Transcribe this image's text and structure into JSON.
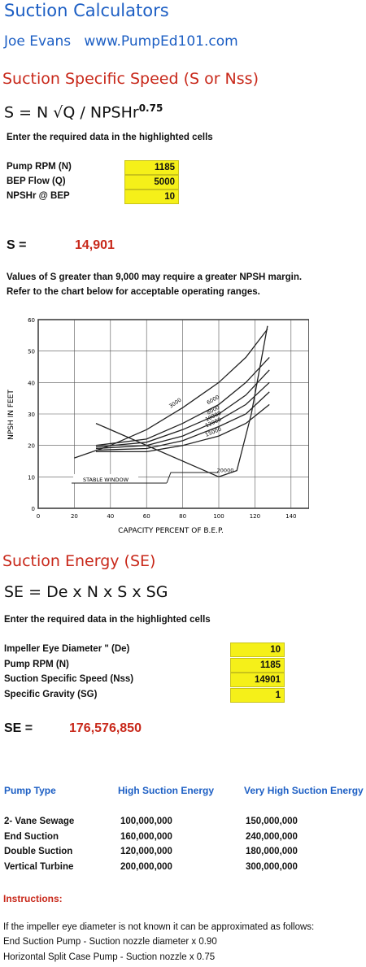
{
  "header": {
    "title": "Suction Calculators",
    "author": "Joe Evans",
    "website": "www.PumpEd101.com"
  },
  "nss": {
    "heading": "Suction Specific Speed (S or Nss)",
    "formula": "S = N √Q / NPSHr",
    "formula_exponent": "0.75",
    "instruction": "Enter the required data in the highlighted cells",
    "inputs": [
      {
        "label": "Pump RPM (N)",
        "value": 1185
      },
      {
        "label": "BEP Flow (Q)",
        "value": 5000
      },
      {
        "label": "NPSHr @ BEP",
        "value": 10
      }
    ],
    "result_label": "S =",
    "result": "14,901",
    "notes": [
      "Values of S greater than 9,000 may require a greater NPSH margin.",
      "Refer to the chart below for acceptable operating ranges."
    ]
  },
  "chart_data": {
    "type": "line",
    "x_label": "CAPACITY   PERCENT   OF   B.E.P.",
    "y_label": "NPSH   IN   FEET",
    "xlim": [
      0,
      150
    ],
    "ylim": [
      0,
      60
    ],
    "xticks": [
      0,
      20,
      40,
      60,
      80,
      100,
      120,
      140
    ],
    "yticks": [
      0,
      10,
      20,
      30,
      40,
      50,
      60
    ],
    "grid": true,
    "color": "#222222",
    "annotation": "STABLE WINDOW",
    "series": [
      {
        "name": "3000",
        "x": [
          20,
          40,
          60,
          80,
          100,
          115,
          127
        ],
        "values": [
          16,
          20,
          25,
          32,
          40,
          48,
          57
        ]
      },
      {
        "name": "6000",
        "x": [
          32,
          60,
          80,
          100,
          115,
          128
        ],
        "values": [
          20,
          22,
          27,
          33,
          40,
          48
        ]
      },
      {
        "name": "8000",
        "x": [
          32,
          60,
          80,
          100,
          115,
          128
        ],
        "values": [
          19.5,
          21,
          25,
          30,
          36,
          44
        ]
      },
      {
        "name": "10000",
        "x": [
          32,
          60,
          80,
          100,
          115,
          128
        ],
        "values": [
          19,
          20,
          23,
          28,
          33,
          40
        ]
      },
      {
        "name": "12000",
        "x": [
          32,
          60,
          80,
          100,
          115,
          128
        ],
        "values": [
          18.5,
          19,
          21.5,
          26,
          30,
          37
        ]
      },
      {
        "name": "15000",
        "x": [
          32,
          60,
          80,
          100,
          115,
          128
        ],
        "values": [
          18,
          18,
          20,
          23,
          27,
          33
        ]
      },
      {
        "name": "20000",
        "x": [
          32,
          100,
          110,
          118,
          127
        ],
        "values": [
          27,
          10,
          12,
          30,
          58
        ]
      }
    ]
  },
  "se": {
    "heading": "Suction Energy (SE)",
    "formula": "SE = De x N x S x SG",
    "instruction": "Enter the required data in the highlighted cells",
    "inputs": [
      {
        "label": "Impeller Eye Diameter \" (De)",
        "value": 10
      },
      {
        "label": "Pump RPM (N)",
        "value": 1185
      },
      {
        "label": "Suction Specific Speed (Nss)",
        "value": 14901
      },
      {
        "label": "Specific Gravity (SG)",
        "value": 1
      }
    ],
    "result_label": "SE =",
    "result": "176,576,850"
  },
  "pump_table": {
    "columns": [
      "Pump Type",
      "High Suction Energy",
      "Very High Suction Energy"
    ],
    "rows": [
      [
        "2- Vane Sewage",
        "100,000,000",
        "150,000,000"
      ],
      [
        "End Suction",
        "160,000,000",
        "240,000,000"
      ],
      [
        "Double Suction",
        "120,000,000",
        "180,000,000"
      ],
      [
        "Vertical Turbine",
        "200,000,000",
        "300,000,000"
      ]
    ]
  },
  "instructions": {
    "heading": "Instructions:",
    "lines": [
      "If the impeller eye diameter is not known it can be approximated as follows:",
      "End Suction Pump - Suction nozzle diameter x 0.90",
      "Horizontal Split Case Pump - Suction nozzle x 0.75"
    ]
  }
}
